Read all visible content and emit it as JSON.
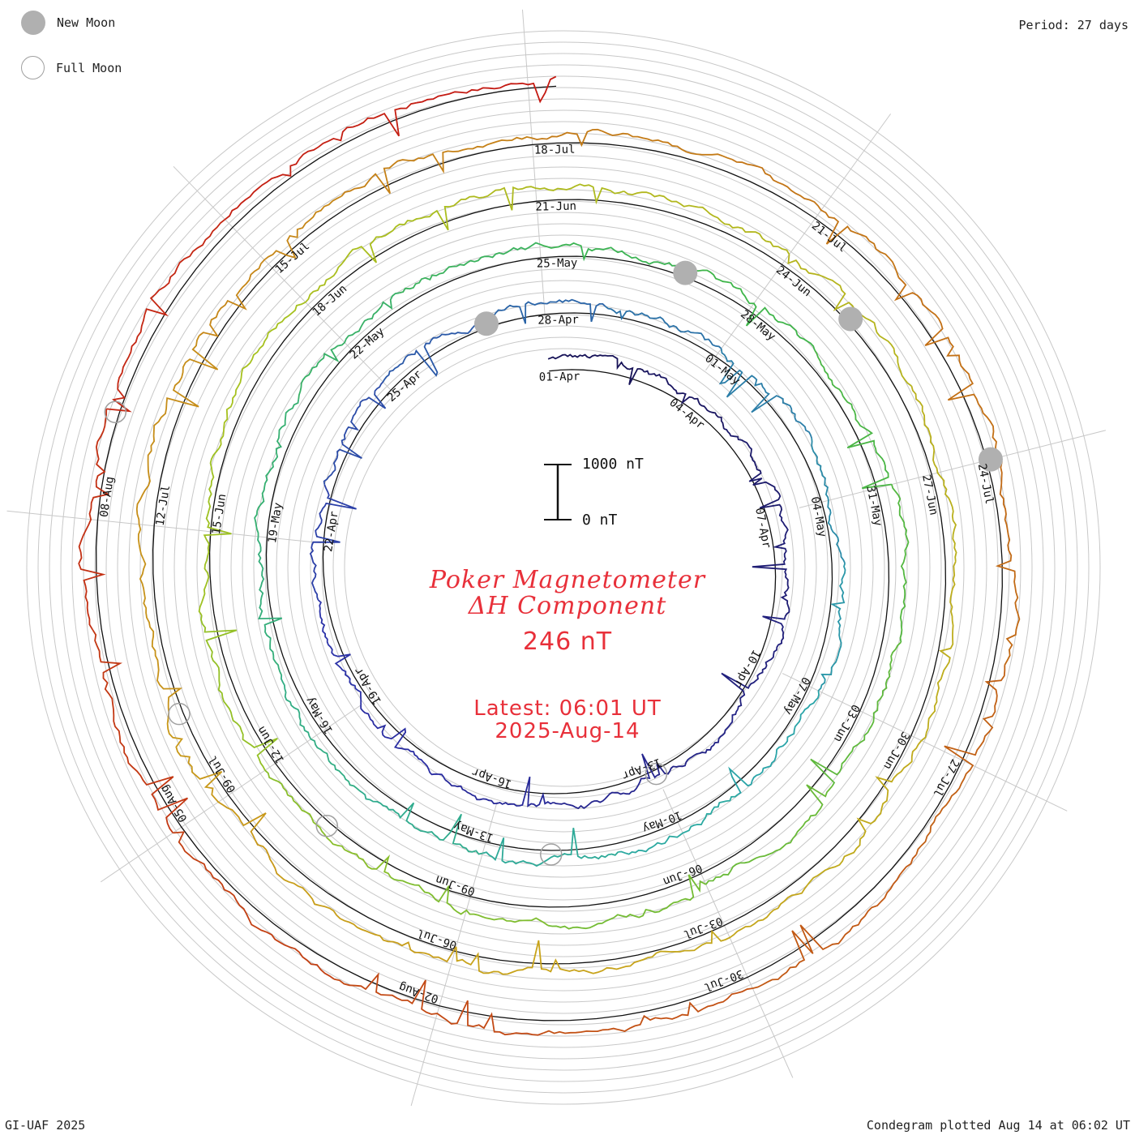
{
  "header": {
    "legend": [
      {
        "label": "New Moon",
        "icon": "new-moon-icon"
      },
      {
        "label": "Full Moon",
        "icon": "full-moon-icon"
      }
    ],
    "period": "Period: 27 days"
  },
  "center": {
    "title_line1": "Poker Magnetometer",
    "title_line2": "ΔH Component",
    "current_value": "246 nT",
    "latest_line1": "Latest: 06:01 UT",
    "latest_line2": "2025-Aug-14"
  },
  "footer": {
    "credit": "GI-UAF 2025",
    "plotted": "Condegram plotted Aug 14 at 06:02 UT"
  },
  "chart_data": {
    "type": "line",
    "subtype": "spiral condegram",
    "title": "Poker Magnetometer ΔH Component",
    "period_days": 27,
    "scale": {
      "top_label": "1000 nT",
      "bottom_label": "0 nT",
      "min": 0,
      "max": 1000
    },
    "turns": [
      {
        "date_labels": [
          "01-Apr",
          "04-Apr",
          "07-Apr",
          "10-Apr",
          "13-Apr",
          "16-Apr",
          "19-Apr",
          "22-Apr",
          "25-Apr"
        ],
        "color": "#15104f"
      },
      {
        "date_labels": [
          "28-Apr",
          "01-May",
          "04-May",
          "07-May",
          "10-May",
          "13-May",
          "16-May",
          "19-May",
          "22-May"
        ],
        "color": "#2c2fa8"
      },
      {
        "date_labels": [
          "25-May",
          "28-May",
          "31-May",
          "03-Jun",
          "06-Jun",
          "09-Jun",
          "12-Jun",
          "15-Jun",
          "18-Jun"
        ],
        "color": "#2aa8a8"
      },
      {
        "date_labels": [
          "21-Jun",
          "24-Jun",
          "27-Jun",
          "30-Jun",
          "03-Jul",
          "06-Jul",
          "09-Jul",
          "12-Jul",
          "15-Jul"
        ],
        "color": "#7cbc2e"
      },
      {
        "date_labels": [
          "18-Jul",
          "21-Jul",
          "24-Jul",
          "27-Jul",
          "30-Jul",
          "02-Aug",
          "05-Aug",
          "08-Aug"
        ],
        "color": "#c26a15"
      }
    ],
    "new_moon_markers": [
      "2025-04-27",
      "2025-05-27",
      "2025-06-25",
      "2025-07-24"
    ],
    "full_moon_markers": [
      "2025-04-13",
      "2025-05-12",
      "2025-06-11",
      "2025-07-10",
      "2025-08-09"
    ],
    "latest_value_nT": 246
  }
}
